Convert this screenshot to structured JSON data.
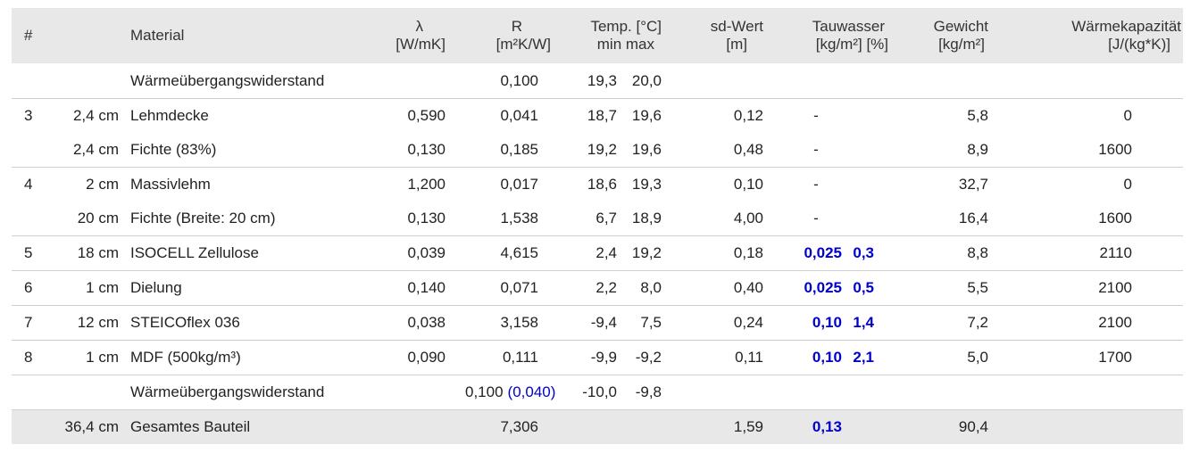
{
  "header": {
    "num": "#",
    "material": "Material",
    "lambda": "λ",
    "lambda_unit": "[W/mK]",
    "r": "R",
    "r_unit": "[m²K/W]",
    "temp": "Temp. [°C]",
    "temp_sub": "min max",
    "sd": "sd-Wert",
    "sd_unit": "[m]",
    "tau": "Tauwasser",
    "tau_unit": "[kg/m²] [%]",
    "weight": "Gewicht",
    "weight_unit": "[kg/m²]",
    "heat": "Wärmekapazität",
    "heat_unit": "[J/(kg*K)]"
  },
  "rows": [
    {
      "num": "",
      "thick": "",
      "material": "Wärmeübergangswiderstand",
      "lambda": "",
      "r": "0,100",
      "r_extra": "",
      "tmin": "19,3",
      "tmax": "20,0",
      "sd": "",
      "tau_kg": "",
      "tau_pct": "",
      "weight": "",
      "heat": ""
    },
    {
      "num": "3",
      "thick": "2,4 cm",
      "material": "Lehmdecke",
      "lambda": "0,590",
      "r": "0,041",
      "r_extra": "",
      "tmin": "18,7",
      "tmax": "19,6",
      "sd": "0,12",
      "tau_kg": "-",
      "tau_pct": "",
      "weight": "5,8",
      "heat": "0"
    },
    {
      "num": "",
      "thick": "2,4 cm",
      "material": "Fichte (83%)",
      "lambda": "0,130",
      "r": "0,185",
      "r_extra": "",
      "tmin": "19,2",
      "tmax": "19,6",
      "sd": "0,48",
      "tau_kg": "-",
      "tau_pct": "",
      "weight": "8,9",
      "heat": "1600"
    },
    {
      "num": "4",
      "thick": "2 cm",
      "material": "Massivlehm",
      "lambda": "1,200",
      "r": "0,017",
      "r_extra": "",
      "tmin": "18,6",
      "tmax": "19,3",
      "sd": "0,10",
      "tau_kg": "-",
      "tau_pct": "",
      "weight": "32,7",
      "heat": "0"
    },
    {
      "num": "",
      "thick": "20 cm",
      "material": "Fichte (Breite: 20 cm)",
      "lambda": "0,130",
      "r": "1,538",
      "r_extra": "",
      "tmin": "6,7",
      "tmax": "18,9",
      "sd": "4,00",
      "tau_kg": "-",
      "tau_pct": "",
      "weight": "16,4",
      "heat": "1600"
    },
    {
      "num": "5",
      "thick": "18 cm",
      "material": "ISOCELL Zellulose",
      "lambda": "0,039",
      "r": "4,615",
      "r_extra": "",
      "tmin": "2,4",
      "tmax": "19,2",
      "sd": "0,18",
      "tau_kg": "0,025",
      "tau_pct": "0,3",
      "weight": "8,8",
      "heat": "2110"
    },
    {
      "num": "6",
      "thick": "1 cm",
      "material": "Dielung",
      "lambda": "0,140",
      "r": "0,071",
      "r_extra": "",
      "tmin": "2,2",
      "tmax": "8,0",
      "sd": "0,40",
      "tau_kg": "0,025",
      "tau_pct": "0,5",
      "weight": "5,5",
      "heat": "2100"
    },
    {
      "num": "7",
      "thick": "12 cm",
      "material": "STEICOflex 036",
      "lambda": "0,038",
      "r": "3,158",
      "r_extra": "",
      "tmin": "-9,4",
      "tmax": "7,5",
      "sd": "0,24",
      "tau_kg": "0,10",
      "tau_pct": "1,4",
      "weight": "7,2",
      "heat": "2100"
    },
    {
      "num": "8",
      "thick": "1 cm",
      "material": "MDF (500kg/m³)",
      "lambda": "0,090",
      "r": "0,111",
      "r_extra": "",
      "tmin": "-9,9",
      "tmax": "-9,2",
      "sd": "0,11",
      "tau_kg": "0,10",
      "tau_pct": "2,1",
      "weight": "5,0",
      "heat": "1700"
    },
    {
      "num": "",
      "thick": "",
      "material": "Wärmeübergangswiderstand",
      "lambda": "",
      "r": "0,100",
      "r_extra": "(0,040)",
      "tmin": "-10,0",
      "tmax": "-9,8",
      "sd": "",
      "tau_kg": "",
      "tau_pct": "",
      "weight": "",
      "heat": ""
    }
  ],
  "total": {
    "thick": "36,4 cm",
    "material": "Gesamtes Bauteil",
    "r": "7,306",
    "sd": "1,59",
    "tau_kg": "0,13",
    "weight": "90,4"
  },
  "colors": {
    "accent_blue": "#0000cc",
    "header_bg": "#e8e8e8"
  }
}
